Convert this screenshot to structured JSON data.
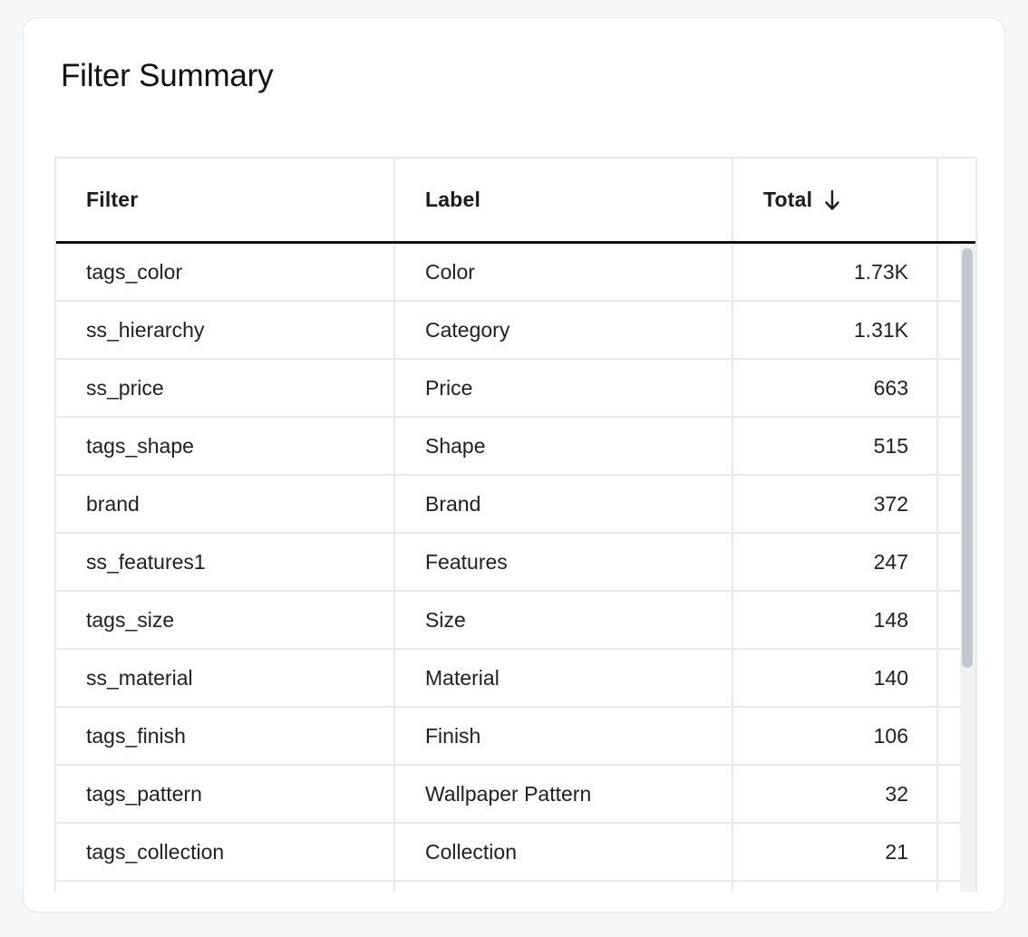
{
  "card": {
    "title": "Filter Summary"
  },
  "table": {
    "columns": {
      "filter": "Filter",
      "label": "Label",
      "total": "Total"
    },
    "sort": {
      "column": "total",
      "direction": "descending",
      "icon": "arrow-down-icon"
    },
    "rows": [
      {
        "filter": "tags_color",
        "label": "Color",
        "total": "1.73K"
      },
      {
        "filter": "ss_hierarchy",
        "label": "Category",
        "total": "1.31K"
      },
      {
        "filter": "ss_price",
        "label": "Price",
        "total": "663"
      },
      {
        "filter": "tags_shape",
        "label": "Shape",
        "total": "515"
      },
      {
        "filter": "brand",
        "label": "Brand",
        "total": "372"
      },
      {
        "filter": "ss_features1",
        "label": "Features",
        "total": "247"
      },
      {
        "filter": "tags_size",
        "label": "Size",
        "total": "148"
      },
      {
        "filter": "ss_material",
        "label": "Material",
        "total": "140"
      },
      {
        "filter": "tags_finish",
        "label": "Finish",
        "total": "106"
      },
      {
        "filter": "tags_pattern",
        "label": "Wallpaper Pattern",
        "total": "32"
      },
      {
        "filter": "tags_collection",
        "label": "Collection",
        "total": "21"
      }
    ],
    "colors": {
      "header_rule": "#111111",
      "grid": "#e8e9ec",
      "scrollbar_thumb": "#c3c7cf"
    }
  }
}
